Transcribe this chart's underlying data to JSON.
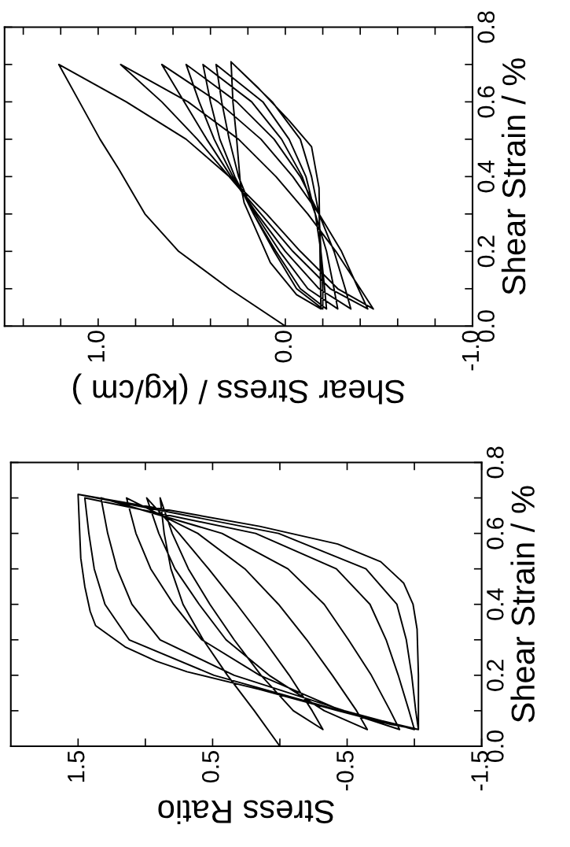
{
  "chart_data": [
    {
      "type": "line",
      "xlabel": "Shear Stress / (kg/cm )",
      "ylabel": "Shear Strain / %",
      "xlim": [
        1.5,
        -1.0
      ],
      "ylim": [
        0,
        0.8
      ],
      "xticks": [
        {
          "value": 1.4,
          "label": null
        },
        {
          "value": 1.2,
          "label": null
        },
        {
          "value": 1.0,
          "label": "1.0"
        },
        {
          "value": 0.8,
          "label": null
        },
        {
          "value": 0.6,
          "label": null
        },
        {
          "value": 0.4,
          "label": null
        },
        {
          "value": 0.2,
          "label": null
        },
        {
          "value": 0.0,
          "label": "0.0"
        },
        {
          "value": -0.2,
          "label": null
        },
        {
          "value": -0.4,
          "label": null
        },
        {
          "value": -0.6,
          "label": null
        },
        {
          "value": -0.8,
          "label": null
        },
        {
          "value": -1.0,
          "label": "-1.0"
        }
      ],
      "yticks": [
        {
          "value": 0.0,
          "label": "0.0"
        },
        {
          "value": 0.1,
          "label": null
        },
        0.2,
        {
          "value": 0.3,
          "label": null
        },
        0.4,
        {
          "value": 0.5,
          "label": null
        },
        0.6,
        {
          "value": 0.7,
          "label": null
        },
        0.8
      ],
      "series": [
        {
          "color": "#000000",
          "x": [
            0.0,
            0.3,
            0.57,
            0.75,
            0.89,
            0.99,
            1.1,
            1.21,
            0.85,
            0.53,
            0.3,
            0.1,
            -0.08,
            -0.28,
            -0.47,
            -0.4,
            -0.27,
            -0.12,
            0.05,
            0.25,
            0.52,
            0.88,
            0.66,
            0.47,
            0.3,
            0.13,
            -0.04,
            -0.24,
            -0.44,
            -0.39,
            -0.3,
            -0.18,
            -0.04,
            0.13,
            0.36,
            0.66,
            0.54,
            0.42,
            0.29,
            0.15,
            0.0,
            -0.18,
            -0.35,
            -0.32,
            -0.26,
            -0.18,
            -0.08,
            0.06,
            0.26,
            0.53,
            0.46,
            0.38,
            0.28,
            0.16,
            0.03,
            -0.12,
            -0.28,
            -0.26,
            -0.22,
            -0.16,
            -0.09,
            0.02,
            0.18,
            0.44,
            0.4,
            0.35,
            0.27,
            0.17,
            0.05,
            -0.08,
            -0.22,
            -0.21,
            -0.19,
            -0.16,
            -0.11,
            -0.02,
            0.12,
            0.37,
            0.34,
            0.3,
            0.25,
            0.17,
            0.06,
            -0.06,
            -0.2,
            -0.2,
            -0.19,
            -0.18,
            -0.14,
            -0.08,
            0.07,
            0.29,
            0.28,
            0.26,
            0.24,
            0.22,
            0.15,
            0.08,
            -0.06,
            -0.19,
            -0.185,
            -0.18,
            -0.14,
            -0.02,
            0.15,
            0.29
          ],
          "values": [
            0,
            0.1,
            0.2,
            0.3,
            0.42,
            0.5,
            0.6,
            0.7,
            0.6,
            0.5,
            0.4,
            0.3,
            0.2,
            0.1,
            0.046,
            0.1,
            0.2,
            0.3,
            0.4,
            0.5,
            0.6,
            0.7,
            0.6,
            0.5,
            0.4,
            0.3,
            0.2,
            0.1,
            0.046,
            0.1,
            0.2,
            0.3,
            0.4,
            0.5,
            0.6,
            0.7,
            0.6,
            0.5,
            0.4,
            0.3,
            0.2,
            0.1,
            0.046,
            0.1,
            0.2,
            0.3,
            0.4,
            0.5,
            0.6,
            0.7,
            0.6,
            0.5,
            0.4,
            0.3,
            0.2,
            0.1,
            0.046,
            0.1,
            0.2,
            0.3,
            0.4,
            0.5,
            0.6,
            0.7,
            0.6,
            0.5,
            0.4,
            0.3,
            0.2,
            0.1,
            0.046,
            0.1,
            0.2,
            0.3,
            0.4,
            0.5,
            0.6,
            0.7,
            0.6,
            0.5,
            0.4,
            0.3,
            0.2,
            0.1,
            0.046,
            0.1,
            0.2,
            0.3,
            0.4,
            0.5,
            0.6,
            0.707,
            0.6,
            0.5,
            0.38,
            0.33,
            0.25,
            0.17,
            0.084,
            0.046,
            0.2,
            0.37,
            0.48,
            0.55,
            0.64,
            0.707
          ]
        }
      ]
    },
    {
      "type": "line",
      "xlabel": "Stress Ratio",
      "ylabel": "Shear Strain / %",
      "xlim": [
        2.0,
        -1.5
      ],
      "ylim": [
        0,
        0.8
      ],
      "xticks": [
        1.5,
        {
          "value": 1.0,
          "label": null
        },
        0.5,
        {
          "value": 0.0,
          "label": null
        },
        -0.5,
        {
          "value": -1.0,
          "label": null
        },
        -1.5
      ],
      "yticks": [
        {
          "value": 0.0,
          "label": "0.0"
        },
        {
          "value": 0.1,
          "label": null
        },
        0.2,
        {
          "value": 0.3,
          "label": null
        },
        0.4,
        {
          "value": 0.5,
          "label": null
        },
        0.6,
        {
          "value": 0.7,
          "label": null
        },
        0.8
      ],
      "series": [
        {
          "color": "#000000",
          "x": [
            0.0,
            0.19,
            0.39,
            0.57,
            0.72,
            0.81,
            0.86,
            0.89,
            0.8,
            0.68,
            0.52,
            0.34,
            0.14,
            -0.1,
            -0.32,
            -0.24,
            -0.07,
            0.12,
            0.32,
            0.53,
            0.75,
            0.99,
            0.9,
            0.78,
            0.6,
            0.4,
            0.08,
            -0.33,
            -0.65,
            -0.57,
            -0.39,
            -0.2,
            0.01,
            0.26,
            0.61,
            1.14,
            1.07,
            0.96,
            0.79,
            0.58,
            0.15,
            -0.46,
            -0.89,
            -0.82,
            -0.68,
            -0.51,
            -0.33,
            -0.06,
            0.43,
            1.33,
            1.28,
            1.21,
            1.1,
            0.89,
            0.34,
            -0.48,
            -1.0,
            -0.96,
            -0.88,
            -0.79,
            -0.67,
            -0.42,
            0.18,
            1.45,
            1.42,
            1.38,
            1.3,
            1.12,
            0.49,
            -0.45,
            -1.03,
            -1.01,
            -0.98,
            -0.94,
            -0.87,
            -0.64,
            0.01,
            1.5,
            1.49,
            1.48,
            1.45,
            1.41,
            1.37,
            1.15,
            0.92,
            0.69,
            0.15,
            -0.43,
            -0.82,
            -1.03,
            -1.03,
            -1.02,
            -0.99,
            -0.92,
            -0.75,
            -0.43,
            0.15,
            0.74,
            1.2,
            1.5
          ],
          "values": [
            0,
            0.1,
            0.2,
            0.3,
            0.4,
            0.5,
            0.6,
            0.7,
            0.6,
            0.5,
            0.4,
            0.3,
            0.2,
            0.1,
            0.047,
            0.1,
            0.2,
            0.3,
            0.4,
            0.5,
            0.6,
            0.7,
            0.6,
            0.5,
            0.4,
            0.3,
            0.2,
            0.1,
            0.047,
            0.1,
            0.2,
            0.3,
            0.4,
            0.5,
            0.6,
            0.7,
            0.6,
            0.5,
            0.4,
            0.3,
            0.2,
            0.1,
            0.047,
            0.1,
            0.2,
            0.3,
            0.4,
            0.5,
            0.6,
            0.7,
            0.6,
            0.5,
            0.4,
            0.3,
            0.2,
            0.1,
            0.047,
            0.1,
            0.2,
            0.3,
            0.4,
            0.5,
            0.6,
            0.7,
            0.6,
            0.5,
            0.4,
            0.3,
            0.2,
            0.1,
            0.047,
            0.1,
            0.2,
            0.3,
            0.4,
            0.5,
            0.6,
            0.71,
            0.62,
            0.53,
            0.45,
            0.38,
            0.34,
            0.28,
            0.24,
            0.21,
            0.16,
            0.1,
            0.062,
            0.047,
            0.2,
            0.33,
            0.4,
            0.46,
            0.52,
            0.57,
            0.62,
            0.66,
            0.69,
            0.71
          ]
        }
      ]
    }
  ]
}
